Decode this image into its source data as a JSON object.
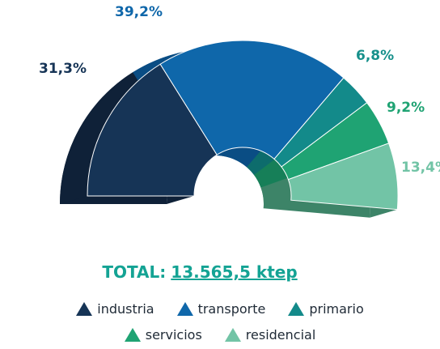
{
  "chart_data": {
    "type": "pie",
    "style": "3d half-donut",
    "title": "",
    "total_label": "TOTAL:",
    "total_value": "13.565,5 ktep",
    "series": [
      {
        "name": "industria",
        "value": 31.3,
        "label": "31,3%",
        "color": "#163456",
        "side": "#0f2138",
        "label_color": "#163456"
      },
      {
        "name": "transporte",
        "value": 39.2,
        "label": "39,2%",
        "color": "#0f67aa",
        "side": "#0a4d84",
        "label_color": "#0f67aa"
      },
      {
        "name": "primario",
        "value": 6.8,
        "label": "6,8%",
        "color": "#138a8a",
        "side": "#0d6c6c",
        "label_color": "#17908b"
      },
      {
        "name": "servicios",
        "value": 9.2,
        "label": "9,2%",
        "color": "#1fa373",
        "side": "#167f58",
        "label_color": "#1fa373"
      },
      {
        "name": "residencial",
        "value": 13.4,
        "label": "13,4%",
        "color": "#72c4a6",
        "side": "#3d8468",
        "label_color": "#72c4a6"
      }
    ],
    "legend_position": "bottom"
  }
}
